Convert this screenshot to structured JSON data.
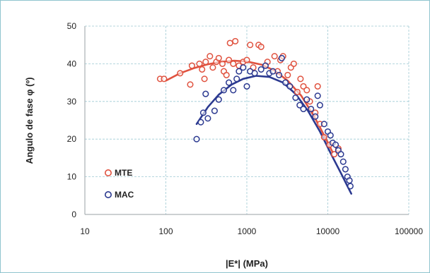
{
  "chart_data": {
    "type": "scatter",
    "title": "",
    "xlabel": "|E*| (MPa)",
    "ylabel": "Angulo de fase φ (º)",
    "xscale": "log",
    "xlim": [
      10,
      100000
    ],
    "ylim": [
      0,
      50
    ],
    "x_ticks": [
      10,
      100,
      1000,
      10000,
      100000
    ],
    "x_tick_labels": [
      "10",
      "100",
      "1000",
      "10000",
      "100000"
    ],
    "y_ticks": [
      0,
      10,
      20,
      30,
      40,
      50
    ],
    "y_tick_labels": [
      "0",
      "10",
      "20",
      "30",
      "40",
      "50"
    ],
    "grid": true,
    "legend_position": "bottom-left",
    "series": [
      {
        "name": "MTE",
        "color": "#e0523f",
        "marker": "open-circle",
        "points": [
          [
            85,
            36
          ],
          [
            95,
            36
          ],
          [
            150,
            37.5
          ],
          [
            200,
            34.5
          ],
          [
            210,
            39.5
          ],
          [
            260,
            40
          ],
          [
            280,
            38.5
          ],
          [
            300,
            36
          ],
          [
            310,
            40.5
          ],
          [
            350,
            42
          ],
          [
            380,
            39
          ],
          [
            420,
            40.5
          ],
          [
            450,
            41.5
          ],
          [
            500,
            40
          ],
          [
            520,
            38
          ],
          [
            560,
            37
          ],
          [
            600,
            41
          ],
          [
            620,
            45.5
          ],
          [
            680,
            40
          ],
          [
            720,
            46
          ],
          [
            800,
            39.5
          ],
          [
            900,
            40.5
          ],
          [
            1000,
            41
          ],
          [
            1100,
            45
          ],
          [
            1200,
            39
          ],
          [
            1400,
            45
          ],
          [
            1500,
            44.5
          ],
          [
            1800,
            40.5
          ],
          [
            2200,
            42
          ],
          [
            2400,
            38
          ],
          [
            2600,
            41
          ],
          [
            2800,
            42
          ],
          [
            3200,
            37
          ],
          [
            3500,
            39
          ],
          [
            3800,
            40
          ],
          [
            4200,
            32.5
          ],
          [
            4600,
            36
          ],
          [
            5000,
            34
          ],
          [
            5500,
            33
          ],
          [
            6000,
            30
          ],
          [
            7000,
            27
          ],
          [
            7500,
            34
          ],
          [
            8000,
            24
          ],
          [
            9000,
            20.5
          ],
          [
            10500,
            18.5
          ],
          [
            12000,
            16
          ],
          [
            13500,
            17.5
          ]
        ],
        "trend": [
          [
            100,
            35.5
          ],
          [
            150,
            37.5
          ],
          [
            220,
            38.8
          ],
          [
            320,
            39.8
          ],
          [
            470,
            40.5
          ],
          [
            700,
            40.8
          ],
          [
            1000,
            40.6
          ],
          [
            1500,
            39.8
          ],
          [
            2200,
            38.2
          ],
          [
            3200,
            35.5
          ],
          [
            4700,
            31.5
          ],
          [
            6800,
            26
          ],
          [
            9000,
            21
          ],
          [
            11500,
            16.5
          ]
        ]
      },
      {
        "name": "MAC",
        "color": "#2b3990",
        "marker": "open-circle",
        "points": [
          [
            240,
            20
          ],
          [
            270,
            24.5
          ],
          [
            290,
            27
          ],
          [
            310,
            32
          ],
          [
            330,
            25.5
          ],
          [
            400,
            27.5
          ],
          [
            450,
            30.5
          ],
          [
            520,
            33
          ],
          [
            600,
            35
          ],
          [
            680,
            33
          ],
          [
            750,
            36
          ],
          [
            800,
            38
          ],
          [
            900,
            39
          ],
          [
            1000,
            34
          ],
          [
            1100,
            38
          ],
          [
            1250,
            37.5
          ],
          [
            1500,
            38.5
          ],
          [
            1700,
            39.5
          ],
          [
            1900,
            37.5
          ],
          [
            2100,
            38
          ],
          [
            2500,
            37
          ],
          [
            2700,
            41.5
          ],
          [
            3000,
            35
          ],
          [
            3400,
            34
          ],
          [
            4000,
            31
          ],
          [
            4500,
            29
          ],
          [
            5000,
            28
          ],
          [
            5500,
            30.5
          ],
          [
            6200,
            28
          ],
          [
            7000,
            26
          ],
          [
            7500,
            31.5
          ],
          [
            8000,
            29
          ],
          [
            9000,
            24
          ],
          [
            10000,
            22
          ],
          [
            10800,
            21
          ],
          [
            11500,
            19
          ],
          [
            12500,
            18.5
          ],
          [
            13500,
            17
          ],
          [
            14500,
            16
          ],
          [
            15500,
            14
          ],
          [
            16500,
            12
          ],
          [
            17500,
            10
          ],
          [
            18500,
            9
          ],
          [
            19000,
            7.5
          ]
        ],
        "trend": [
          [
            240,
            24
          ],
          [
            330,
            28.5
          ],
          [
            450,
            31.8
          ],
          [
            650,
            34.5
          ],
          [
            900,
            36
          ],
          [
            1300,
            36.8
          ],
          [
            1900,
            36.5
          ],
          [
            2800,
            35
          ],
          [
            4000,
            32
          ],
          [
            5700,
            27.5
          ],
          [
            8000,
            22
          ],
          [
            11000,
            16
          ],
          [
            14500,
            11
          ],
          [
            17500,
            7.5
          ],
          [
            19500,
            5.5
          ]
        ]
      }
    ]
  }
}
